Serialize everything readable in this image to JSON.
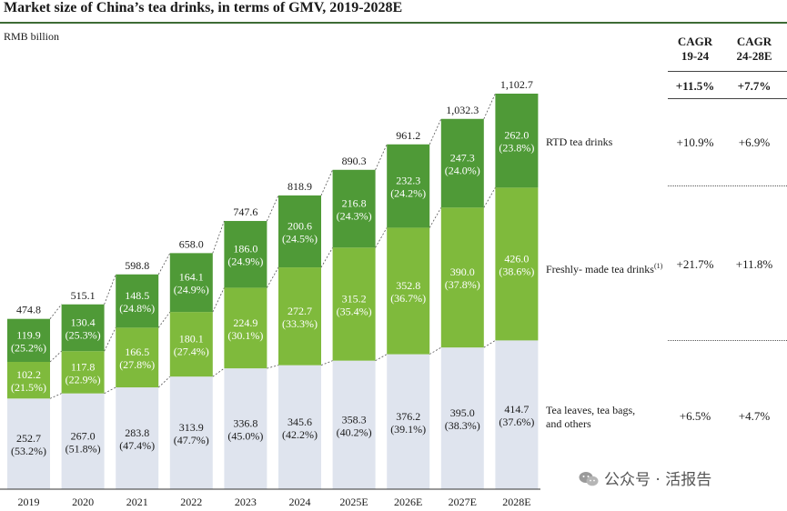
{
  "chart_data": {
    "type": "bar",
    "stacked": true,
    "title": "Market size of China’s tea drinks, in terms of GMV, 2019-2028E",
    "ylabel": "RMB billion",
    "categories": [
      "2019",
      "2020",
      "2021",
      "2022",
      "2023",
      "2024",
      "2025E",
      "2026E",
      "2027E",
      "2028E"
    ],
    "totals": [
      474.8,
      515.1,
      598.8,
      658.0,
      747.6,
      818.9,
      890.3,
      961.2,
      1032.3,
      1102.7
    ],
    "total_labels": [
      "474.8",
      "515.1",
      "598.8",
      "658.0",
      "747.6",
      "818.9",
      "890.3",
      "961.2",
      "1,032.3",
      "1,102.7"
    ],
    "series": [
      {
        "name": "Tea leaves, tea bags, and others",
        "color": "#dfe4ee",
        "values": [
          252.7,
          267.0,
          283.8,
          313.9,
          336.8,
          345.6,
          358.3,
          376.2,
          395.0,
          414.7
        ],
        "value_labels": [
          "252.7",
          "267.0",
          "283.8",
          "313.9",
          "336.8",
          "345.6",
          "358.3",
          "376.2",
          "395.0",
          "414.7"
        ],
        "share_labels": [
          "(53.2%)",
          "(51.8%)",
          "(47.4%)",
          "(47.7%)",
          "(45.0%)",
          "(42.2%)",
          "(40.2%)",
          "(39.1%)",
          "(38.3%)",
          "(37.6%)"
        ]
      },
      {
        "name": "Freshly- made tea drinks",
        "color": "#7fba3c",
        "values": [
          102.2,
          117.8,
          166.5,
          180.1,
          224.9,
          272.7,
          315.2,
          352.8,
          390.0,
          426.0
        ],
        "value_labels": [
          "102.2",
          "117.8",
          "166.5",
          "180.1",
          "224.9",
          "272.7",
          "315.2",
          "352.8",
          "390.0",
          "426.0"
        ],
        "share_labels": [
          "(21.5%)",
          "(22.9%)",
          "(27.8%)",
          "(27.4%)",
          "(30.1%)",
          "(33.3%)",
          "(35.4%)",
          "(36.7%)",
          "(37.8%)",
          "(38.6%)"
        ]
      },
      {
        "name": "RTD tea drinks",
        "color": "#4f9a37",
        "values": [
          119.9,
          130.4,
          148.5,
          164.1,
          186.0,
          200.6,
          216.8,
          232.3,
          247.3,
          262.0
        ],
        "value_labels": [
          "119.9",
          "130.4",
          "148.5",
          "164.1",
          "186.0",
          "200.6",
          "216.8",
          "232.3",
          "247.3",
          "262.0"
        ],
        "share_labels": [
          "(25.2%)",
          "(25.3%)",
          "(24.8%)",
          "(24.9%)",
          "(24.9%)",
          "(24.5%)",
          "(24.3%)",
          "(24.2%)",
          "(24.0%)",
          "(23.8%)"
        ]
      }
    ],
    "ylim": [
      0,
      1102.7
    ],
    "grid": false
  },
  "cagr_table": {
    "headers": [
      {
        "line1": "CAGR",
        "line2": "19-24"
      },
      {
        "line1": "CAGR",
        "line2": "24-28E"
      }
    ],
    "total": [
      "+11.5%",
      "+7.7%"
    ],
    "rows": [
      {
        "label": "RTD tea drinks",
        "sup": "",
        "values": [
          "+10.9%",
          "+6.9%"
        ]
      },
      {
        "label": "Freshly- made tea drinks",
        "sup": "(1)",
        "values": [
          "+21.7%",
          "+11.8%"
        ]
      },
      {
        "label_line1": "Tea leaves, tea bags,",
        "label_line2": "and others",
        "values": [
          "+6.5%",
          "+4.7%"
        ]
      }
    ]
  },
  "watermark": "公众号 · 活报告"
}
